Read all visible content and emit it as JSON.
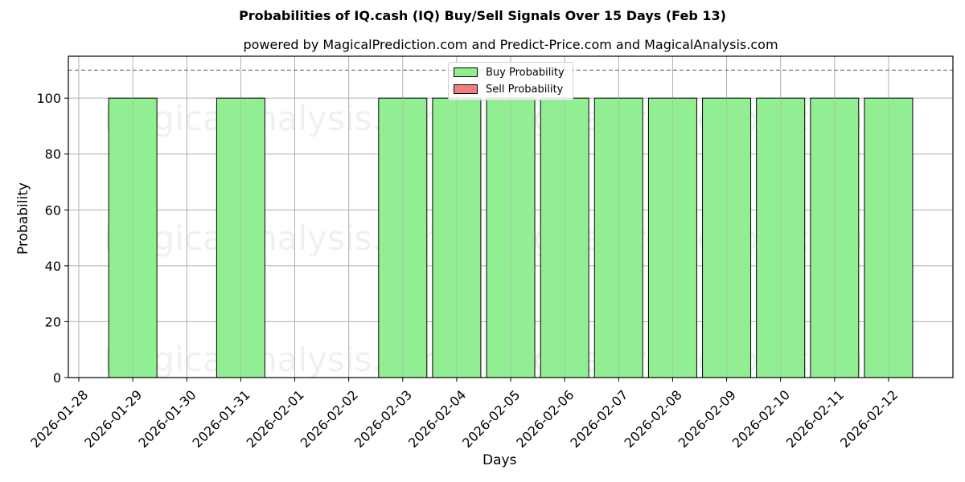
{
  "title": "Probabilities of IQ.cash (IQ) Buy/Sell Signals Over 15 Days (Feb 13)",
  "subtitle": "powered by MagicalPrediction.com and Predict-Price.com and MagicalAnalysis.com",
  "watermarks": [
    "MagicalAnalysis.com",
    "MagicalPrediction.com"
  ],
  "legend": {
    "buy_label": "Buy Probability",
    "sell_label": "Sell Probability"
  },
  "colors": {
    "buy": "#90ee90",
    "sell": "#f08080",
    "grid": "#b0b0b0",
    "threshold": "#808080"
  },
  "chart_data": {
    "type": "bar",
    "title": "Probabilities of IQ.cash (IQ) Buy/Sell Signals Over 15 Days (Feb 13)",
    "subtitle": "powered by MagicalPrediction.com and Predict-Price.com and MagicalAnalysis.com",
    "xlabel": "Days",
    "ylabel": "Probability",
    "ylim": [
      0,
      115
    ],
    "yticks": [
      0,
      20,
      40,
      60,
      80,
      100
    ],
    "categories": [
      "2026-01-28",
      "2026-01-29",
      "2026-01-30",
      "2026-01-31",
      "2026-02-01",
      "2026-02-02",
      "2026-02-03",
      "2026-02-04",
      "2026-02-05",
      "2026-02-06",
      "2026-02-07",
      "2026-02-08",
      "2026-02-09",
      "2026-02-10",
      "2026-02-11",
      "2026-02-12"
    ],
    "series": [
      {
        "name": "Buy Probability",
        "color": "#90ee90",
        "values": [
          0,
          100,
          0,
          100,
          0,
          0,
          100,
          100,
          100,
          100,
          100,
          100,
          100,
          100,
          100,
          100
        ]
      },
      {
        "name": "Sell Probability",
        "color": "#f08080",
        "values": [
          0,
          0,
          0,
          0,
          0,
          0,
          0,
          0,
          0,
          0,
          0,
          0,
          0,
          0,
          0,
          0
        ]
      }
    ],
    "threshold_line": 110,
    "grid": true,
    "legend_position": "upper center"
  }
}
